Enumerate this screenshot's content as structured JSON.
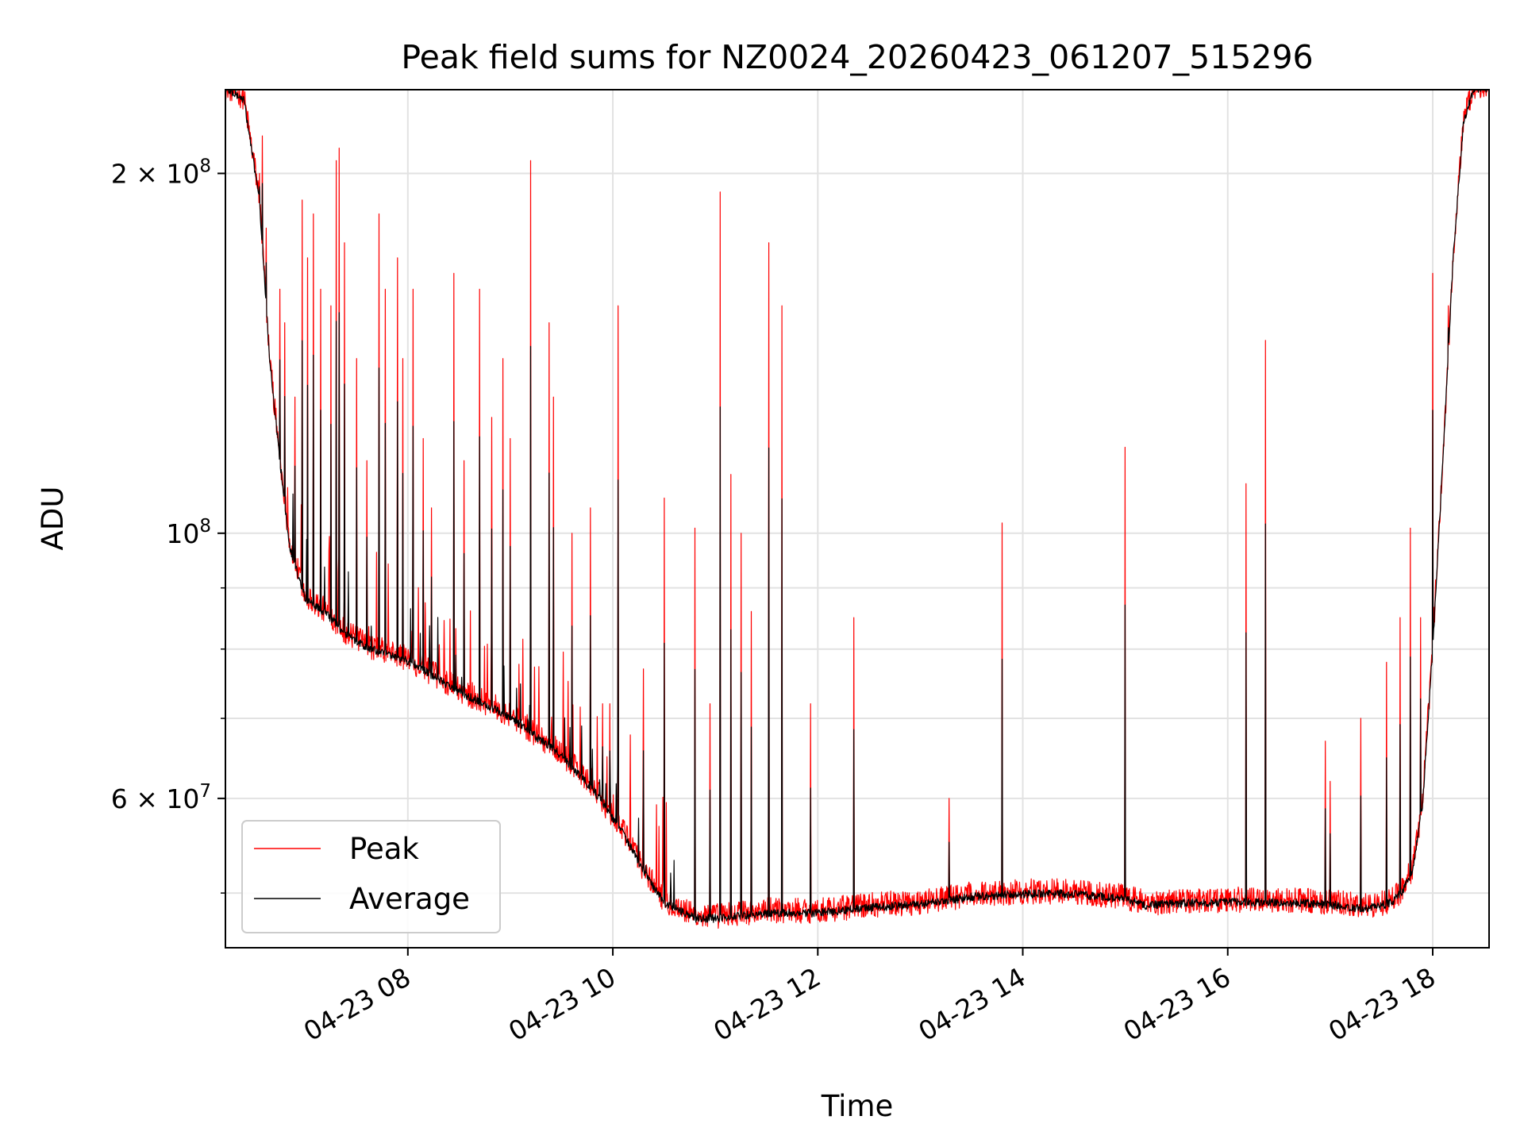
{
  "chart_data": {
    "type": "line",
    "title": "Peak field sums for NZ0024_20260423_061207_515296",
    "xlabel": "Time",
    "ylabel": "ADU",
    "yscale": "log",
    "x_unit": "hours",
    "xlim": [
      6.22,
      18.55
    ],
    "ylim": [
      45000000,
      235000000
    ],
    "grid": true,
    "legend_position": "lower-left",
    "x_ticks": [
      {
        "value": 8,
        "label": "04-23 08"
      },
      {
        "value": 10,
        "label": "04-23 10"
      },
      {
        "value": 12,
        "label": "04-23 12"
      },
      {
        "value": 14,
        "label": "04-23 14"
      },
      {
        "value": 16,
        "label": "04-23 16"
      },
      {
        "value": 18,
        "label": "04-23 18"
      }
    ],
    "y_ticks": [
      {
        "value": 60000000,
        "label": "6 × 10",
        "exp": "7"
      },
      {
        "value": 100000000,
        "label": "10",
        "exp": "8"
      },
      {
        "value": 200000000,
        "label": "2 × 10",
        "exp": "8"
      }
    ],
    "y_minor_ticks": [
      50000000,
      70000000,
      80000000,
      90000000
    ],
    "baseline": {
      "x": [
        6.22,
        6.4,
        6.55,
        6.65,
        6.75,
        6.85,
        7.0,
        7.2,
        7.4,
        7.6,
        8.0,
        8.5,
        9.0,
        9.5,
        9.8,
        10.1,
        10.3,
        10.5,
        10.8,
        11.0,
        11.5,
        12.0,
        12.5,
        13.0,
        13.5,
        14.0,
        14.5,
        15.0,
        15.2,
        15.5,
        16.0,
        16.5,
        17.0,
        17.3,
        17.5,
        17.6,
        17.7,
        17.8,
        17.9,
        18.0,
        18.1,
        18.2,
        18.3,
        18.4,
        18.55
      ],
      "y": [
        235000000,
        230000000,
        190000000,
        140000000,
        115000000,
        97000000,
        88000000,
        85500000,
        82000000,
        80000000,
        78000000,
        73500000,
        70000000,
        65000000,
        61000000,
        56000000,
        52000000,
        49000000,
        47500000,
        47500000,
        48000000,
        48000000,
        48500000,
        48800000,
        49500000,
        49800000,
        49800000,
        49300000,
        48700000,
        48900000,
        49000000,
        49000000,
        48800000,
        48400000,
        48700000,
        49000000,
        50000000,
        52000000,
        59000000,
        80000000,
        115000000,
        170000000,
        220000000,
        235000000,
        235000000
      ]
    },
    "series": [
      {
        "name": "Peak",
        "color": "#ff0000",
        "line_width": 1.2,
        "noise": 0.025,
        "spike_scale": 1.0
      },
      {
        "name": "Average",
        "color": "#000000",
        "line_width": 1.2,
        "noise": 0.008,
        "spike_scale": 0.55
      }
    ],
    "spikes": [
      {
        "x": 6.55,
        "peak": 200000000
      },
      {
        "x": 6.58,
        "peak": 215000000
      },
      {
        "x": 6.62,
        "peak": 180000000
      },
      {
        "x": 6.75,
        "peak": 160000000
      },
      {
        "x": 6.8,
        "peak": 150000000
      },
      {
        "x": 6.9,
        "peak": 130000000
      },
      {
        "x": 6.97,
        "peak": 190000000
      },
      {
        "x": 7.02,
        "peak": 170000000
      },
      {
        "x": 7.08,
        "peak": 185000000
      },
      {
        "x": 7.15,
        "peak": 160000000
      },
      {
        "x": 7.25,
        "peak": 155000000
      },
      {
        "x": 7.3,
        "peak": 205000000
      },
      {
        "x": 7.33,
        "peak": 210000000
      },
      {
        "x": 7.38,
        "peak": 175000000
      },
      {
        "x": 7.5,
        "peak": 140000000
      },
      {
        "x": 7.6,
        "peak": 115000000
      },
      {
        "x": 7.72,
        "peak": 185000000
      },
      {
        "x": 7.78,
        "peak": 160000000
      },
      {
        "x": 7.9,
        "peak": 170000000
      },
      {
        "x": 7.95,
        "peak": 140000000
      },
      {
        "x": 8.05,
        "peak": 160000000
      },
      {
        "x": 8.15,
        "peak": 120000000
      },
      {
        "x": 8.23,
        "peak": 105000000
      },
      {
        "x": 8.45,
        "peak": 165000000
      },
      {
        "x": 8.55,
        "peak": 115000000
      },
      {
        "x": 8.7,
        "peak": 160000000
      },
      {
        "x": 8.82,
        "peak": 125000000
      },
      {
        "x": 8.93,
        "peak": 140000000
      },
      {
        "x": 9.0,
        "peak": 120000000
      },
      {
        "x": 9.2,
        "peak": 205000000
      },
      {
        "x": 9.38,
        "peak": 150000000
      },
      {
        "x": 9.42,
        "peak": 130000000
      },
      {
        "x": 9.6,
        "peak": 100000000
      },
      {
        "x": 9.78,
        "peak": 105000000
      },
      {
        "x": 9.9,
        "peak": 72000000
      },
      {
        "x": 9.97,
        "peak": 72000000
      },
      {
        "x": 10.05,
        "peak": 155000000
      },
      {
        "x": 10.3,
        "peak": 77000000
      },
      {
        "x": 10.5,
        "peak": 107000000
      },
      {
        "x": 10.8,
        "peak": 101000000
      },
      {
        "x": 10.95,
        "peak": 72000000
      },
      {
        "x": 11.05,
        "peak": 193000000
      },
      {
        "x": 11.15,
        "peak": 112000000
      },
      {
        "x": 11.25,
        "peak": 100000000
      },
      {
        "x": 11.35,
        "peak": 86000000
      },
      {
        "x": 11.52,
        "peak": 175000000
      },
      {
        "x": 11.65,
        "peak": 155000000
      },
      {
        "x": 11.93,
        "peak": 72000000
      },
      {
        "x": 12.35,
        "peak": 85000000
      },
      {
        "x": 13.28,
        "peak": 60000000
      },
      {
        "x": 13.8,
        "peak": 102000000
      },
      {
        "x": 15.0,
        "peak": 118000000
      },
      {
        "x": 16.18,
        "peak": 110000000
      },
      {
        "x": 16.37,
        "peak": 145000000
      },
      {
        "x": 16.95,
        "peak": 67000000
      },
      {
        "x": 17.0,
        "peak": 62000000
      },
      {
        "x": 17.3,
        "peak": 70000000
      },
      {
        "x": 17.55,
        "peak": 78000000
      },
      {
        "x": 17.68,
        "peak": 85000000
      },
      {
        "x": 17.78,
        "peak": 101000000
      },
      {
        "x": 17.88,
        "peak": 85000000
      },
      {
        "x": 18.0,
        "peak": 165000000
      },
      {
        "x": 18.15,
        "peak": 155000000
      }
    ]
  }
}
